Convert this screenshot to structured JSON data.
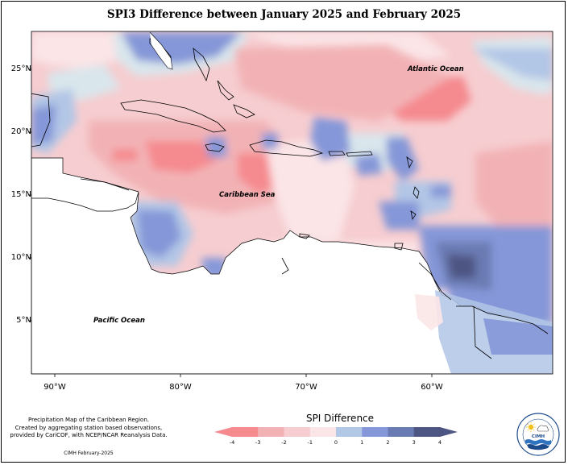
{
  "title": "SPI3 Difference between January 2025 and February 2025",
  "map": {
    "latitude_labels": [
      {
        "label": "25°N",
        "lat": 25
      },
      {
        "label": "20°N",
        "lat": 20
      },
      {
        "label": "15°N",
        "lat": 15
      },
      {
        "label": "10°N",
        "lat": 10
      },
      {
        "label": "5°N",
        "lat": 5
      }
    ],
    "longitude_labels": [
      {
        "label": "90°W",
        "lon": -90
      },
      {
        "label": "80°W",
        "lon": -80
      },
      {
        "label": "70°W",
        "lon": -70
      },
      {
        "label": "60°W",
        "lon": -60
      }
    ],
    "places": {
      "atlantic": "Atlantic Ocean",
      "caribbean": "Caribbean Sea",
      "pacific": "Pacific Ocean"
    }
  },
  "legend": {
    "title": "SPI Difference",
    "ticks": [
      "-4",
      "-3",
      "-2",
      "-1",
      "0",
      "1",
      "2",
      "3",
      "4"
    ],
    "colors": [
      "#f58a8f",
      "#f2b2b5",
      "#f6cdd0",
      "#fbe5e7",
      "#d9e6ec",
      "#b2c6e6",
      "#8597d8",
      "#6a7ab2",
      "#4d5582"
    ]
  },
  "credit": {
    "line1": "Precipitation Map of the Caribbean Region.",
    "line2": "Created by aggregating station based observations,",
    "line3": "provided by CariCOF, with NCEP/NCAR Reanalysis Data.",
    "stamp": "CIMH February-2025"
  },
  "logo": {
    "text": "CIMH",
    "ring_text": "CARIBBEAN INSTITUTE FOR METEOROLOGY AND HYDROLOGY"
  }
}
